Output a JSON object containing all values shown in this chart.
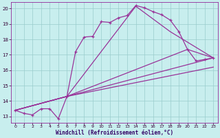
{
  "xlabel": "Windchill (Refroidissement éolien,°C)",
  "bg_color": "#c8eeee",
  "line_color": "#993399",
  "grid_color": "#99cccc",
  "xlim": [
    -0.5,
    23.5
  ],
  "ylim": [
    12.6,
    20.4
  ],
  "yticks": [
    13,
    14,
    15,
    16,
    17,
    18,
    19,
    20
  ],
  "xticks": [
    0,
    1,
    2,
    3,
    4,
    5,
    6,
    7,
    8,
    9,
    10,
    11,
    12,
    13,
    14,
    15,
    16,
    17,
    18,
    19,
    20,
    21,
    22,
    23
  ],
  "main_x": [
    0,
    1,
    2,
    3,
    4,
    5,
    6,
    7,
    8,
    9,
    10,
    11,
    12,
    13,
    14,
    15,
    16,
    17,
    18,
    19,
    20,
    21,
    22,
    23
  ],
  "main_y": [
    13.4,
    13.2,
    13.1,
    13.5,
    13.5,
    12.85,
    14.3,
    17.2,
    18.15,
    18.2,
    19.15,
    19.1,
    19.4,
    19.55,
    20.2,
    20.05,
    19.8,
    19.6,
    19.25,
    18.5,
    17.35,
    16.6,
    16.7,
    16.8
  ],
  "line2_x": [
    0,
    6,
    14,
    18,
    23
  ],
  "line2_y": [
    13.4,
    14.3,
    20.15,
    18.5,
    16.8
  ],
  "line3_x": [
    0,
    6,
    20,
    23
  ],
  "line3_y": [
    13.4,
    14.3,
    17.35,
    16.8
  ],
  "line4_x": [
    0,
    6,
    23
  ],
  "line4_y": [
    13.4,
    14.3,
    16.8
  ],
  "line5_x": [
    0,
    6,
    23
  ],
  "line5_y": [
    13.4,
    14.3,
    16.2
  ]
}
